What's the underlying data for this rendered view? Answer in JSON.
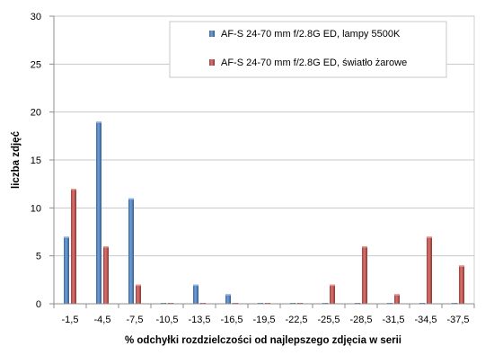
{
  "chart_data": {
    "type": "bar",
    "title": "",
    "xlabel": "% odchyłki rozdzielczości od najlepszego zdjęcia w serii",
    "ylabel": "liczba zdjęć",
    "ylim": [
      0,
      30
    ],
    "yticks": [
      0,
      5,
      10,
      15,
      20,
      25,
      30
    ],
    "grid": "horizontal",
    "legend_position": "top-right",
    "categories": [
      "-1,5",
      "-4,5",
      "-7,5",
      "-10,5",
      "-13,5",
      "-16,5",
      "-19,5",
      "-22,5",
      "-25,5",
      "-28,5",
      "-31,5",
      "-34,5",
      "-37,5"
    ],
    "series": [
      {
        "name": "AF-S 24-70 mm f/2.8G ED, lampy 5500K",
        "color": "#4f81bd",
        "values": [
          7,
          19,
          11,
          0,
          2,
          1,
          0,
          0,
          0,
          0,
          0,
          0,
          0
        ]
      },
      {
        "name": "AF-S 24-70 mm f/2.8G ED, światło żarowe",
        "color": "#c0504d",
        "values": [
          12,
          6,
          2,
          0,
          0,
          0,
          0,
          0,
          2,
          6,
          1,
          7,
          4
        ]
      }
    ]
  }
}
